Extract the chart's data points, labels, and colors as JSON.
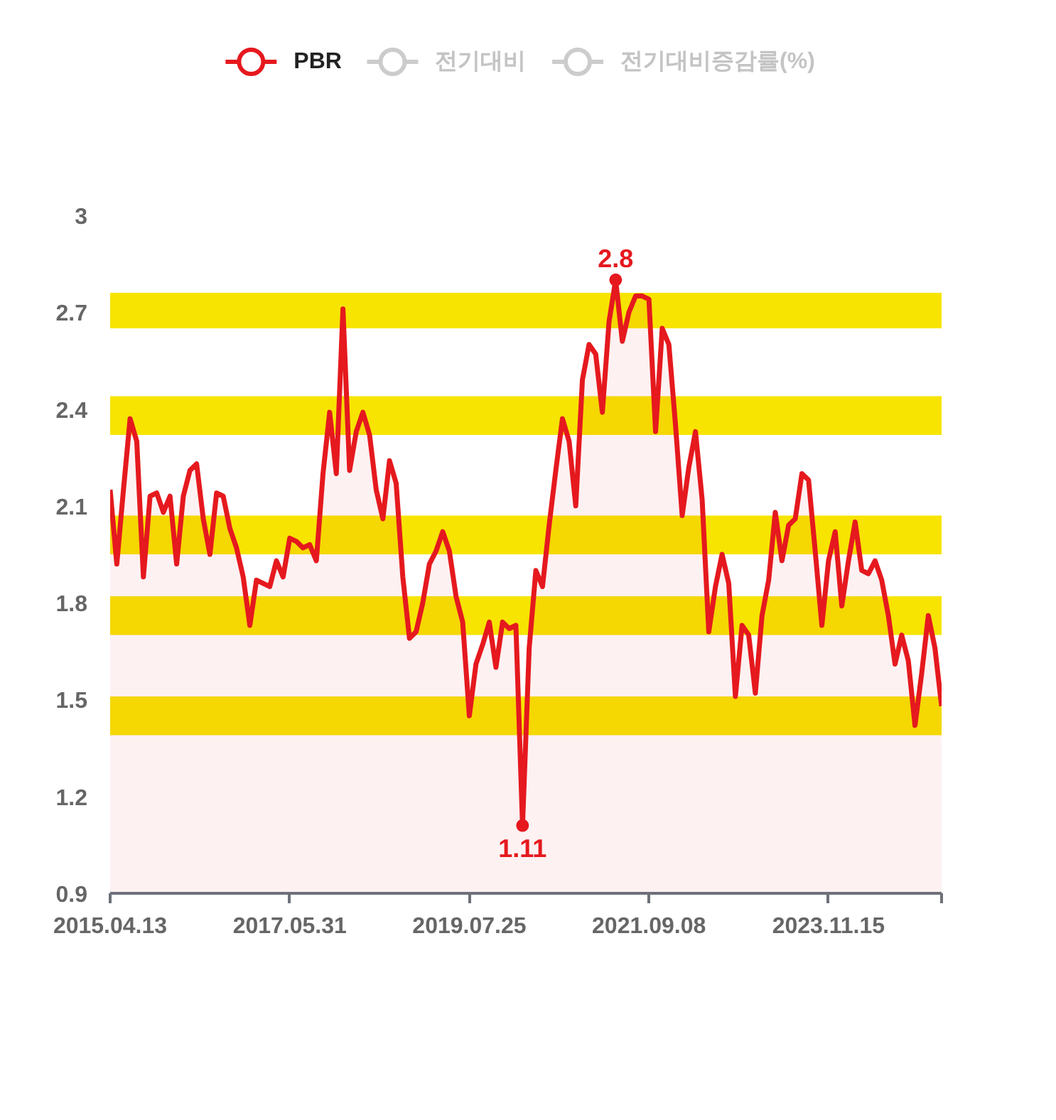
{
  "chart_data": {
    "type": "area",
    "categories": [
      "2015.04.13",
      null,
      null,
      null,
      null,
      null,
      null,
      null,
      null,
      null,
      null,
      null,
      null,
      null,
      null,
      null,
      null,
      null,
      null,
      null,
      null,
      null,
      null,
      null,
      null,
      null,
      null,
      "2017.05.31",
      null,
      null,
      null,
      null,
      null,
      null,
      null,
      null,
      null,
      null,
      null,
      null,
      null,
      null,
      null,
      null,
      null,
      null,
      null,
      null,
      null,
      null,
      null,
      null,
      null,
      null,
      "2019.07.25",
      null,
      null,
      null,
      null,
      null,
      null,
      null,
      null,
      null,
      null,
      null,
      null,
      null,
      null,
      null,
      null,
      null,
      null,
      null,
      null,
      null,
      null,
      null,
      null,
      null,
      null,
      "2021.09.08",
      null,
      null,
      null,
      null,
      null,
      null,
      null,
      null,
      null,
      null,
      null,
      null,
      null,
      null,
      null,
      null,
      null,
      null,
      null,
      null,
      null,
      null,
      null,
      null,
      null,
      null,
      "2023.11.15",
      null,
      null,
      null,
      null,
      null,
      null,
      null,
      null,
      null,
      null,
      null,
      null,
      null,
      null,
      null,
      null,
      null
    ],
    "series": [
      {
        "name": "PBR",
        "color": "#e5191e",
        "values": [
          2.15,
          1.92,
          2.15,
          2.37,
          2.3,
          1.88,
          2.13,
          2.14,
          2.08,
          2.13,
          1.92,
          2.13,
          2.21,
          2.23,
          2.06,
          1.95,
          2.14,
          2.13,
          2.03,
          1.97,
          1.88,
          1.73,
          1.87,
          1.86,
          1.85,
          1.93,
          1.88,
          2.0,
          1.99,
          1.97,
          1.98,
          1.93,
          2.2,
          2.39,
          2.2,
          2.71,
          2.21,
          2.33,
          2.39,
          2.32,
          2.15,
          2.06,
          2.24,
          2.17,
          1.88,
          1.69,
          1.71,
          1.8,
          1.92,
          1.96,
          2.02,
          1.96,
          1.82,
          1.74,
          1.45,
          1.61,
          1.67,
          1.74,
          1.6,
          1.74,
          1.72,
          1.73,
          1.11,
          1.66,
          1.9,
          1.85,
          2.04,
          2.21,
          2.37,
          2.3,
          2.1,
          2.49,
          2.6,
          2.57,
          2.39,
          2.67,
          2.8,
          2.61,
          2.7,
          2.75,
          2.75,
          2.74,
          2.33,
          2.65,
          2.6,
          2.35,
          2.07,
          2.22,
          2.33,
          2.12,
          1.71,
          1.85,
          1.95,
          1.86,
          1.51,
          1.73,
          1.7,
          1.52,
          1.76,
          1.87,
          2.08,
          1.93,
          2.04,
          2.06,
          2.2,
          2.18,
          1.96,
          1.73,
          1.93,
          2.02,
          1.79,
          1.93,
          2.05,
          1.9,
          1.89,
          1.93,
          1.87,
          1.76,
          1.61,
          1.7,
          1.62,
          1.42,
          1.58,
          1.76,
          1.66,
          1.48
        ]
      },
      {
        "name": "전기대비",
        "color": "#cccccc",
        "values": [
          null,
          null,
          null,
          null,
          null,
          null,
          null,
          null,
          null,
          null,
          null,
          null,
          null,
          null,
          null,
          null,
          null,
          null,
          null,
          null,
          null,
          null,
          null,
          null,
          null,
          null,
          null,
          null,
          null,
          null,
          null,
          null,
          null,
          null,
          null,
          null,
          null,
          null,
          null,
          null,
          null,
          null,
          null,
          null,
          null,
          null,
          null,
          null,
          null,
          null,
          null,
          null,
          null,
          null,
          null,
          null,
          null,
          null,
          null,
          null,
          null,
          null,
          null,
          null,
          null,
          null,
          null,
          null,
          null,
          null,
          null,
          null,
          null,
          null,
          null,
          null,
          null,
          null,
          null,
          null,
          null,
          null,
          null,
          null,
          null,
          null,
          null,
          null,
          null,
          null,
          null,
          null,
          null,
          null,
          null,
          null,
          null,
          null,
          null,
          null,
          null,
          null,
          null,
          null,
          null,
          null,
          null,
          null,
          null,
          null,
          null,
          null,
          null,
          null,
          null,
          null,
          null,
          null,
          null,
          null,
          null,
          null,
          null,
          null,
          null,
          null
        ]
      },
      {
        "name": "전기대비증감률(%)",
        "color": "#cccccc",
        "values": [
          null,
          null,
          null,
          null,
          null,
          null,
          null,
          null,
          null,
          null,
          null,
          null,
          null,
          null,
          null,
          null,
          null,
          null,
          null,
          null,
          null,
          null,
          null,
          null,
          null,
          null,
          null,
          null,
          null,
          null,
          null,
          null,
          null,
          null,
          null,
          null,
          null,
          null,
          null,
          null,
          null,
          null,
          null,
          null,
          null,
          null,
          null,
          null,
          null,
          null,
          null,
          null,
          null,
          null,
          null,
          null,
          null,
          null,
          null,
          null,
          null,
          null,
          null,
          null,
          null,
          null,
          null,
          null,
          null,
          null,
          null,
          null,
          null,
          null,
          null,
          null,
          null,
          null,
          null,
          null,
          null,
          null,
          null,
          null,
          null,
          null,
          null,
          null,
          null,
          null,
          null,
          null,
          null,
          null,
          null,
          null,
          null,
          null,
          null,
          null,
          null,
          null,
          null,
          null,
          null,
          null,
          null,
          null,
          null,
          null,
          null,
          null,
          null,
          null,
          null,
          null,
          null,
          null,
          null,
          null,
          null,
          null,
          null,
          null,
          null,
          null
        ]
      }
    ],
    "ylim": [
      0.9,
      3
    ],
    "yticks": [
      0.9,
      1.2,
      1.5,
      1.8,
      2.1,
      2.4,
      2.7,
      3
    ],
    "bands": [
      {
        "axis": "y",
        "from": 2.65,
        "to": 2.76,
        "color": "#f7e400"
      },
      {
        "axis": "y",
        "from": 2.32,
        "to": 2.44,
        "color": "#f7e400"
      },
      {
        "axis": "y",
        "from": 1.95,
        "to": 2.07,
        "color": "#f7e400"
      },
      {
        "axis": "y",
        "from": 1.7,
        "to": 1.82,
        "color": "#f7e400"
      },
      {
        "axis": "y",
        "from": 1.39,
        "to": 1.51,
        "color": "#f7e400"
      }
    ],
    "annotations": [
      {
        "text": "2.8",
        "y": 2.8
      },
      {
        "text": "1.11",
        "y": 1.11
      }
    ],
    "legend": "top"
  }
}
